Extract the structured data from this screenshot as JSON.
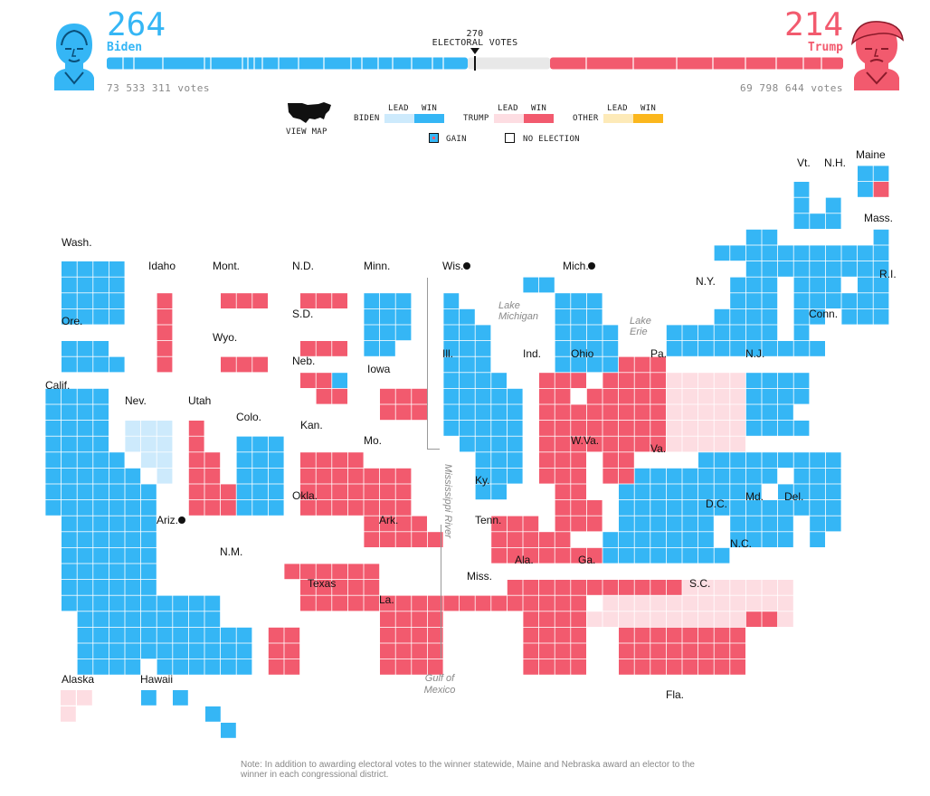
{
  "header": {
    "biden": {
      "count": "264",
      "name": "Biden",
      "votes": "73 533 311 votes",
      "color": "#35b6f5"
    },
    "trump": {
      "count": "214",
      "name": "Trump",
      "votes": "69 798 644 votes",
      "color": "#f25a6e"
    },
    "threshold_number": "270",
    "threshold_label": "ELECTORAL VOTES",
    "biden_share": 0.4907,
    "trump_share": 0.3978
  },
  "legend": {
    "view_map": "VIEW MAP",
    "biden": "BIDEN",
    "trump": "TRUMP",
    "other": "OTHER",
    "lead": "LEAD",
    "win": "WIN",
    "gain": "GAIN",
    "no_election": "NO ELECTION",
    "colors": {
      "biden_lead": "#cdeafc",
      "biden_win": "#35b6f5",
      "trump_lead": "#fddde2",
      "trump_win": "#f25a6e",
      "other_lead": "#fdeab8",
      "other_win": "#fbb71d"
    }
  },
  "states": {
    "wash": "Wash.",
    "idaho": "Idaho",
    "mont": "Mont.",
    "nd": "N.D.",
    "minn": "Minn.",
    "wis": "Wis.",
    "mich": "Mich.",
    "vt": "Vt.",
    "nh": "N.H.",
    "maine": "Maine",
    "mass": "Mass.",
    "ny": "N.Y.",
    "ri": "R.I.",
    "ore": "Ore.",
    "sd": "S.D.",
    "wyo": "Wyo.",
    "conn": "Conn.",
    "neb": "Neb.",
    "iowa": "Iowa",
    "ill": "Ill.",
    "ind": "Ind.",
    "ohio": "Ohio",
    "pa": "Pa.",
    "nj": "N.J.",
    "calif": "Calif.",
    "nev": "Nev.",
    "utah": "Utah",
    "colo": "Colo.",
    "kan": "Kan.",
    "mo": "Mo.",
    "wva": "W.Va.",
    "va": "Va.",
    "md": "Md.",
    "del": "Del.",
    "dc": "D.C.",
    "ky": "Ky.",
    "okla": "Okla.",
    "ariz": "Ariz.",
    "ark": "Ark.",
    "tenn": "Tenn.",
    "nc": "N.C.",
    "nm": "N.M.",
    "texas": "Texas",
    "miss": "Miss.",
    "ala": "Ala.",
    "ga": "Ga.",
    "sc": "S.C.",
    "la": "La.",
    "alaska": "Alaska",
    "hawaii": "Hawaii",
    "fla": "Fla."
  },
  "geography": {
    "lake_michigan": "Lake Michigan",
    "lake_erie": "Lake Erie",
    "mississippi_river": "Mississippi River",
    "gulf_of_mexico": "Gulf of Mexico"
  },
  "note": "Note: In addition to awarding electoral votes to the winner statewide, Maine and Nebraska award an elector to the winner in each congressional district."
}
